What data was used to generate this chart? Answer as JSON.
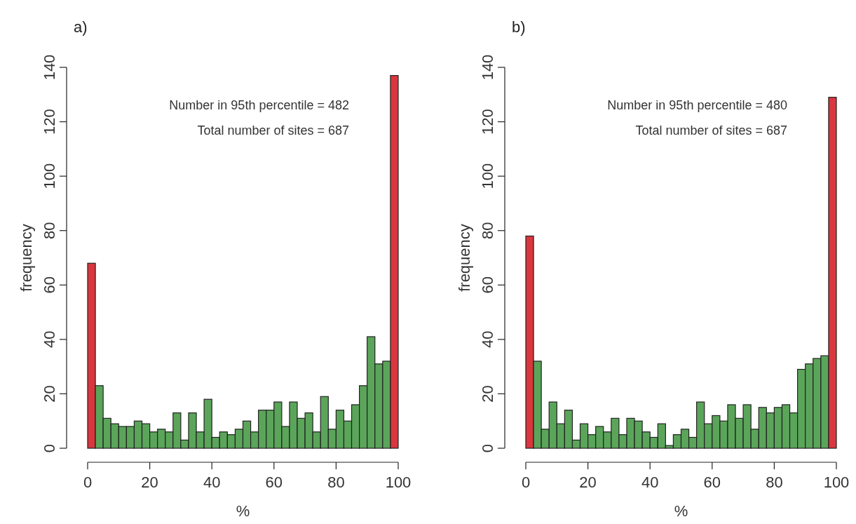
{
  "chart_data": [
    {
      "type": "histogram",
      "title": "a)",
      "xlabel": "%",
      "ylabel": "frequency",
      "bins": [
        0,
        2.5,
        5,
        7.5,
        10,
        12.5,
        15,
        17.5,
        20,
        22.5,
        25,
        27.5,
        30,
        32.5,
        35,
        37.5,
        40,
        42.5,
        45,
        47.5,
        50,
        52.5,
        55,
        57.5,
        60,
        62.5,
        65,
        67.5,
        70,
        72.5,
        75,
        77.5,
        80,
        82.5,
        85,
        87.5,
        90,
        92.5,
        95,
        97.5,
        100
      ],
      "values": [
        68,
        23,
        11,
        9,
        8,
        8,
        10,
        9,
        6,
        7,
        6,
        13,
        3,
        13,
        6,
        18,
        4,
        6,
        5,
        7,
        10,
        6,
        14,
        14,
        17,
        8,
        17,
        11,
        13,
        6,
        19,
        7,
        14,
        10,
        16,
        23,
        41,
        31,
        32,
        137
      ],
      "colors": [
        "#d9363e",
        "#5aa55a",
        "#5aa55a",
        "#5aa55a",
        "#5aa55a",
        "#5aa55a",
        "#5aa55a",
        "#5aa55a",
        "#5aa55a",
        "#5aa55a",
        "#5aa55a",
        "#5aa55a",
        "#5aa55a",
        "#5aa55a",
        "#5aa55a",
        "#5aa55a",
        "#5aa55a",
        "#5aa55a",
        "#5aa55a",
        "#5aa55a",
        "#5aa55a",
        "#5aa55a",
        "#5aa55a",
        "#5aa55a",
        "#5aa55a",
        "#5aa55a",
        "#5aa55a",
        "#5aa55a",
        "#5aa55a",
        "#5aa55a",
        "#5aa55a",
        "#5aa55a",
        "#5aa55a",
        "#5aa55a",
        "#5aa55a",
        "#5aa55a",
        "#5aa55a",
        "#5aa55a",
        "#5aa55a",
        "#d9363e"
      ],
      "xlim": [
        0,
        100
      ],
      "xticks": [
        0,
        20,
        40,
        60,
        80,
        100
      ],
      "ylim": [
        0,
        140
      ],
      "yticks": [
        0,
        20,
        40,
        60,
        80,
        100,
        120,
        140
      ],
      "annotations": [
        "Number in 95th percentile = 482",
        "Total number of sites = 687"
      ]
    },
    {
      "type": "histogram",
      "title": "b)",
      "xlabel": "%",
      "ylabel": "frequency",
      "bins": [
        0,
        2.5,
        5,
        7.5,
        10,
        12.5,
        15,
        17.5,
        20,
        22.5,
        25,
        27.5,
        30,
        32.5,
        35,
        37.5,
        40,
        42.5,
        45,
        47.5,
        50,
        52.5,
        55,
        57.5,
        60,
        62.5,
        65,
        67.5,
        70,
        72.5,
        75,
        77.5,
        80,
        82.5,
        85,
        87.5,
        90,
        92.5,
        95,
        97.5,
        100
      ],
      "values": [
        78,
        32,
        7,
        17,
        9,
        14,
        3,
        9,
        5,
        8,
        6,
        11,
        5,
        11,
        10,
        6,
        4,
        9,
        1,
        5,
        7,
        4,
        17,
        9,
        12,
        10,
        16,
        11,
        16,
        7,
        15,
        13,
        15,
        16,
        13,
        29,
        31,
        33,
        34,
        129
      ],
      "colors": [
        "#d9363e",
        "#5aa55a",
        "#5aa55a",
        "#5aa55a",
        "#5aa55a",
        "#5aa55a",
        "#5aa55a",
        "#5aa55a",
        "#5aa55a",
        "#5aa55a",
        "#5aa55a",
        "#5aa55a",
        "#5aa55a",
        "#5aa55a",
        "#5aa55a",
        "#5aa55a",
        "#5aa55a",
        "#5aa55a",
        "#5aa55a",
        "#5aa55a",
        "#5aa55a",
        "#5aa55a",
        "#5aa55a",
        "#5aa55a",
        "#5aa55a",
        "#5aa55a",
        "#5aa55a",
        "#5aa55a",
        "#5aa55a",
        "#5aa55a",
        "#5aa55a",
        "#5aa55a",
        "#5aa55a",
        "#5aa55a",
        "#5aa55a",
        "#5aa55a",
        "#5aa55a",
        "#5aa55a",
        "#5aa55a",
        "#d9363e"
      ],
      "xlim": [
        0,
        100
      ],
      "xticks": [
        0,
        20,
        40,
        60,
        80,
        100
      ],
      "ylim": [
        0,
        140
      ],
      "yticks": [
        0,
        20,
        40,
        60,
        80,
        100,
        120,
        140
      ],
      "annotations": [
        "Number in 95th percentile = 480",
        "Total number of sites = 687"
      ]
    }
  ]
}
